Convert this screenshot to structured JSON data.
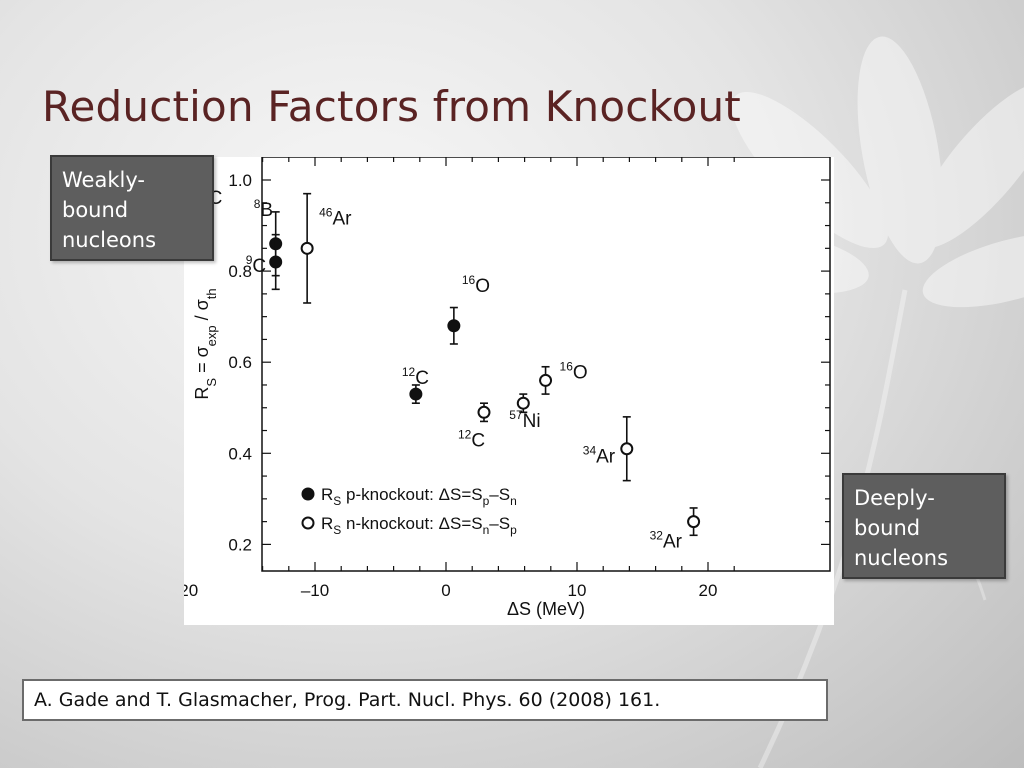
{
  "slide": {
    "title": "Reduction Factors from Knockout",
    "callout_left": "Weakly-\nbound\nnucleons",
    "callout_right": "Deeply-\nbound\nnucleons",
    "citation": "A. Gade and T. Glasmacher, Prog. Part. Nucl. Phys. 60 (2008) 161."
  },
  "colors": {
    "title": "#5a2323",
    "callout_bg": "#5e5e5e"
  },
  "chart_data": {
    "type": "scatter",
    "xlabel": "ΔS (MeV)",
    "ylabel": "R_S = σ_exp / σ_th",
    "xlim": [
      -22,
      22
    ],
    "ylim": [
      0.17,
      1.05
    ],
    "xticks": [
      -20,
      -10,
      0,
      10,
      20
    ],
    "xtick_labels": [
      "–20",
      "–10",
      "0",
      "10",
      "20"
    ],
    "yticks": [
      0.2,
      0.4,
      0.6,
      0.8,
      1.0
    ],
    "ytick_labels": [
      "0.2",
      "0.4",
      "0.6",
      "0.8",
      "1.0"
    ],
    "legend": {
      "placement": "bottom-left",
      "p_prefix": "R",
      "p_sub": "S",
      "p_text": "p-knockout: ΔS=S",
      "p_sub1": "p",
      "p_sub2": "n",
      "n_prefix": "R",
      "n_sub": "S",
      "n_text": "n-knockout: ΔS=S",
      "n_sub1": "n",
      "n_sub2": "p",
      "minus": "–"
    },
    "series": [
      {
        "name": "R_S p-knockout: ΔS=S_p–S_n",
        "marker": "filled",
        "points": [
          {
            "x": -13,
            "y": 0.86,
            "err": 0.07,
            "mass": "8",
            "element": "B"
          },
          {
            "x": -13,
            "y": 0.82,
            "err": 0.06,
            "mass": "9",
            "element": "C"
          },
          {
            "x": 0.6,
            "y": 0.68,
            "err": 0.04,
            "mass": "16",
            "element": "O"
          },
          {
            "x": -2.3,
            "y": 0.53,
            "err": 0.02,
            "mass": "12",
            "element": "C"
          }
        ]
      },
      {
        "name": "R_S n-knockout: ΔS=S_n–S_p",
        "marker": "open",
        "points": [
          {
            "x": -19.9,
            "y": 0.96,
            "err": 0.04,
            "mass": "15",
            "element": "C"
          },
          {
            "x": -10.6,
            "y": 0.85,
            "err": 0.12,
            "mass": "46",
            "element": "Ar"
          },
          {
            "x": 2.9,
            "y": 0.49,
            "err": 0.02,
            "mass": "12",
            "element": "C"
          },
          {
            "x": 5.9,
            "y": 0.51,
            "err": 0.02,
            "mass": "57",
            "element": "Ni"
          },
          {
            "x": 7.6,
            "y": 0.56,
            "err": 0.03,
            "mass": "16",
            "element": "O"
          },
          {
            "x": 13.8,
            "y": 0.41,
            "err": 0.07,
            "mass": "34",
            "element": "Ar"
          },
          {
            "x": 18.9,
            "y": 0.25,
            "err": 0.03,
            "mass": "32",
            "element": "Ar"
          }
        ]
      }
    ]
  }
}
